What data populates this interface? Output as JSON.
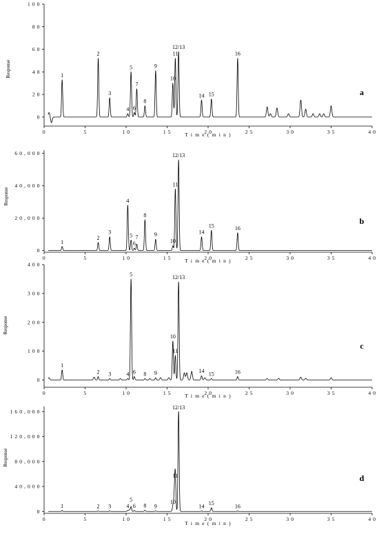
{
  "chart_data": [
    {
      "type": "line",
      "panel_label": "a",
      "ylabel": "Response",
      "xlabel": "T i m e ( m i n )",
      "xlim": [
        0,
        40
      ],
      "ylim": [
        -8,
        100
      ],
      "x_ticks": [
        0,
        5,
        10,
        15,
        20,
        25,
        30,
        35,
        40
      ],
      "x_tick_labels": [
        "0",
        "5",
        "1 0",
        "1 5",
        "2 0",
        "2 5",
        "3 0",
        "3 5",
        "4 0"
      ],
      "y_ticks": [
        0,
        20,
        40,
        60,
        80,
        100
      ],
      "y_tick_labels": [
        "0",
        "2 0",
        "4 0",
        "6 0",
        "8 0",
        "1 0 0"
      ],
      "peaks": [
        {
          "label": "1",
          "rt": 2.2,
          "height": 33
        },
        {
          "label": "2",
          "rt": 6.6,
          "height": 52
        },
        {
          "label": "3",
          "rt": 8.0,
          "height": 17
        },
        {
          "label": "4",
          "rt": 10.2,
          "height": 3
        },
        {
          "label": "5",
          "rt": 10.6,
          "height": 40
        },
        {
          "label": "6",
          "rt": 11.0,
          "height": 4
        },
        {
          "label": "7",
          "rt": 11.3,
          "height": 25
        },
        {
          "label": "8",
          "rt": 12.3,
          "height": 10
        },
        {
          "label": "9",
          "rt": 13.6,
          "height": 41
        },
        {
          "label": "10",
          "rt": 15.7,
          "height": 30
        },
        {
          "label": "11",
          "rt": 16.0,
          "height": 52
        },
        {
          "label": "12/13",
          "rt": 16.4,
          "height": 58
        },
        {
          "label": "14",
          "rt": 19.2,
          "height": 15
        },
        {
          "label": "15",
          "rt": 20.4,
          "height": 16
        },
        {
          "label": "16",
          "rt": 23.6,
          "height": 52
        }
      ],
      "extra_peaks": [
        {
          "rt": 0.6,
          "height": 4
        },
        {
          "rt": 0.9,
          "height": -5
        },
        {
          "rt": 27.2,
          "height": 9
        },
        {
          "rt": 27.6,
          "height": 3
        },
        {
          "rt": 28.4,
          "height": 8
        },
        {
          "rt": 29.8,
          "height": 3
        },
        {
          "rt": 31.3,
          "height": 15
        },
        {
          "rt": 31.9,
          "height": 7
        },
        {
          "rt": 32.8,
          "height": 3
        },
        {
          "rt": 33.6,
          "height": 3
        },
        {
          "rt": 34.1,
          "height": 3
        },
        {
          "rt": 35.0,
          "height": 10
        }
      ]
    },
    {
      "type": "line",
      "panel_label": "b",
      "ylabel": "Response",
      "xlabel": "T i m e ( m i n )",
      "xlim": [
        0,
        40
      ],
      "ylim": [
        -1000,
        62000
      ],
      "x_ticks": [
        0,
        5,
        10,
        15,
        20,
        25,
        30,
        35,
        40
      ],
      "x_tick_labels": [
        "0",
        "5",
        "1 0",
        "1 5",
        "2 0",
        "2 5",
        "3 0",
        "3 5",
        "4 0"
      ],
      "y_ticks": [
        0,
        20000,
        40000,
        60000
      ],
      "y_tick_labels": [
        "0",
        "2 0 , 0 0 0",
        "4 0 , 0 0 0",
        "6 0 , 0 0 0"
      ],
      "peaks": [
        {
          "label": "1",
          "rt": 2.2,
          "height": 2500
        },
        {
          "label": "2",
          "rt": 6.6,
          "height": 5000
        },
        {
          "label": "3",
          "rt": 8.0,
          "height": 8500
        },
        {
          "label": "4",
          "rt": 10.2,
          "height": 28000
        },
        {
          "label": "5",
          "rt": 10.6,
          "height": 6500
        },
        {
          "label": "6",
          "rt": 11.0,
          "height": 1500
        },
        {
          "label": "7",
          "rt": 11.3,
          "height": 4000
        },
        {
          "label": "8",
          "rt": 12.3,
          "height": 19000
        },
        {
          "label": "9",
          "rt": 13.6,
          "height": 7000
        },
        {
          "label": "10",
          "rt": 15.7,
          "height": 3000
        },
        {
          "label": "11",
          "rt": 16.0,
          "height": 38000
        },
        {
          "label": "12/13",
          "rt": 16.4,
          "height": 56000
        },
        {
          "label": "14",
          "rt": 19.2,
          "height": 8500
        },
        {
          "label": "15",
          "rt": 20.4,
          "height": 12500
        },
        {
          "label": "16",
          "rt": 23.6,
          "height": 11000
        }
      ],
      "extra_peaks": []
    },
    {
      "type": "line",
      "panel_label": "c",
      "ylabel": "Response",
      "xlabel": "T i m e ( m i n )",
      "xlim": [
        0,
        40
      ],
      "ylim": [
        -25,
        400
      ],
      "x_ticks": [
        0,
        5,
        10,
        15,
        20,
        25,
        30,
        35,
        40
      ],
      "x_tick_labels": [
        "0",
        "5",
        "1 0",
        "1 5",
        "2 0",
        "2 5",
        "3 0",
        "3 5",
        "4 0"
      ],
      "y_ticks": [
        0,
        100,
        200,
        300,
        400
      ],
      "y_tick_labels": [
        "0",
        "1 0 0",
        "2 0 0",
        "3 0 0",
        "4 0 0"
      ],
      "peaks": [
        {
          "label": "1",
          "rt": 2.2,
          "height": 35
        },
        {
          "label": "2",
          "rt": 6.6,
          "height": 12
        },
        {
          "label": "3",
          "rt": 8.0,
          "height": 5
        },
        {
          "label": "4",
          "rt": 10.2,
          "height": 5
        },
        {
          "label": "5",
          "rt": 10.6,
          "height": 350
        },
        {
          "label": "6",
          "rt": 11.0,
          "height": 12
        },
        {
          "label": "8",
          "rt": 12.3,
          "height": 5
        },
        {
          "label": "9",
          "rt": 13.6,
          "height": 8
        },
        {
          "label": "10",
          "rt": 15.7,
          "height": 135
        },
        {
          "label": "11",
          "rt": 16.0,
          "height": 85
        },
        {
          "label": "12/13",
          "rt": 16.4,
          "height": 340
        },
        {
          "label": "14",
          "rt": 19.2,
          "height": 15
        },
        {
          "label": "15",
          "rt": 20.4,
          "height": 5
        },
        {
          "label": "16",
          "rt": 23.6,
          "height": 12
        }
      ],
      "extra_peaks": [
        {
          "rt": 0.6,
          "height": 8
        },
        {
          "rt": 6.1,
          "height": 10
        },
        {
          "rt": 9.3,
          "height": 5
        },
        {
          "rt": 12.9,
          "height": 5
        },
        {
          "rt": 14.2,
          "height": 8
        },
        {
          "rt": 15.2,
          "height": 8
        },
        {
          "rt": 17.1,
          "height": 25
        },
        {
          "rt": 17.4,
          "height": 25
        },
        {
          "rt": 18.0,
          "height": 30
        },
        {
          "rt": 19.6,
          "height": 8
        },
        {
          "rt": 27.2,
          "height": 5
        },
        {
          "rt": 28.6,
          "height": 6
        },
        {
          "rt": 31.3,
          "height": 10
        },
        {
          "rt": 31.9,
          "height": 6
        },
        {
          "rt": 35.0,
          "height": 8
        }
      ]
    },
    {
      "type": "line",
      "panel_label": "d",
      "ylabel": "Response",
      "xlabel": "T i m e ( m i n )",
      "xlim": [
        0,
        40
      ],
      "ylim": [
        -3000,
        168000
      ],
      "x_ticks": [
        0,
        5,
        10,
        15,
        20,
        25,
        30,
        35,
        40
      ],
      "x_tick_labels": [
        "0",
        "5",
        "1 0",
        "1 5",
        "2 0",
        "2 5",
        "3 0",
        "3 5",
        "4 0"
      ],
      "y_ticks": [
        0,
        40000,
        80000,
        120000,
        160000
      ],
      "y_tick_labels": [
        "0",
        "4 0 , 0 0 0",
        "8 0 , 0 0 0",
        "1 2 0 , 0 0 0",
        "1 6 0 , 0 0 0"
      ],
      "peaks": [
        {
          "label": "1",
          "rt": 2.2,
          "height": 1500
        },
        {
          "label": "2",
          "rt": 6.6,
          "height": 700
        },
        {
          "label": "3",
          "rt": 8.0,
          "height": 1000
        },
        {
          "label": "4",
          "rt": 10.2,
          "height": 1500
        },
        {
          "label": "5",
          "rt": 10.6,
          "height": 7500
        },
        {
          "label": "6",
          "rt": 11.0,
          "height": 1500
        },
        {
          "label": "8",
          "rt": 12.3,
          "height": 2000
        },
        {
          "label": "9",
          "rt": 13.6,
          "height": 800
        },
        {
          "label": "10",
          "rt": 15.7,
          "height": 8000
        },
        {
          "label": "11",
          "rt": 16.0,
          "height": 50000
        },
        {
          "label": "12/13",
          "rt": 16.4,
          "height": 160000
        },
        {
          "label": "14",
          "rt": 19.2,
          "height": 700
        },
        {
          "label": "15",
          "rt": 20.4,
          "height": 6000
        },
        {
          "label": "16",
          "rt": 23.6,
          "height": 800
        }
      ],
      "extra_peaks": [
        {
          "rt": 10.4,
          "height": 2500
        },
        {
          "rt": 15.9,
          "height": 30000
        }
      ]
    }
  ]
}
